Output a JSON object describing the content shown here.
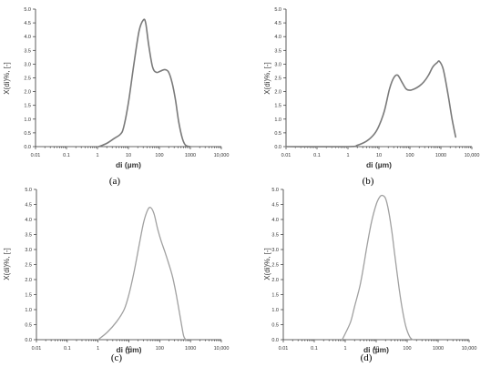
{
  "chart_data": [
    {
      "type": "line",
      "caption": "(a)",
      "xlabel": "di (µm)",
      "ylabel": "X(di)%, [-]",
      "xscale": "log",
      "xlim": [
        0.01,
        10000
      ],
      "ylim": [
        0,
        5
      ],
      "xticks": [
        "0.01",
        "0.1",
        "1",
        "10",
        "100",
        "1000",
        "10,000"
      ],
      "yticks": [
        "0.0",
        "0.5",
        "1.0",
        "1.5",
        "2.0",
        "2.5",
        "3.0",
        "3.5",
        "4.0",
        "4.5",
        "5.0"
      ],
      "grid": false,
      "color": "#7a7a7a",
      "series": [
        {
          "x": [
            1.1,
            2,
            3.5,
            5.5,
            7,
            10,
            15,
            22,
            30,
            36,
            45,
            60,
            80,
            110,
            150,
            200,
            260,
            330,
            420,
            550,
            700,
            1000
          ],
          "y": [
            0,
            0.12,
            0.3,
            0.45,
            0.7,
            1.6,
            3.0,
            4.2,
            4.6,
            4.5,
            3.7,
            2.9,
            2.7,
            2.75,
            2.8,
            2.7,
            2.3,
            1.7,
            0.9,
            0.3,
            0.05,
            0
          ]
        }
      ]
    },
    {
      "type": "line",
      "caption": "(b)",
      "xlabel": "di (µm)",
      "ylabel": "X(di)%, [-]",
      "xscale": "log",
      "xlim": [
        0.01,
        10000
      ],
      "ylim": [
        0,
        5
      ],
      "xticks": [
        "0.01",
        "0.1",
        "1",
        "10",
        "100",
        "1000",
        "10,000"
      ],
      "yticks": [
        "0.0",
        "0.5",
        "1.0",
        "1.5",
        "2.0",
        "2.5",
        "3.0",
        "3.5",
        "4.0",
        "4.5",
        "5.0"
      ],
      "grid": false,
      "color": "#7a7a7a",
      "series": [
        {
          "x": [
            0.01,
            1,
            2,
            4,
            7,
            10,
            15,
            22,
            30,
            40,
            55,
            75,
            100,
            140,
            200,
            280,
            400,
            550,
            750,
            900,
            1200,
            1700,
            2300,
            3000
          ],
          "y": [
            0,
            0,
            0.05,
            0.2,
            0.45,
            0.75,
            1.3,
            2.1,
            2.5,
            2.6,
            2.35,
            2.1,
            2.05,
            2.1,
            2.2,
            2.35,
            2.6,
            2.9,
            3.05,
            3.1,
            2.8,
            1.9,
            1.0,
            0.35
          ]
        }
      ]
    },
    {
      "type": "line",
      "caption": "(c)",
      "xlabel": "di (µm)",
      "ylabel": "X(di)%, [-]",
      "xscale": "log",
      "xlim": [
        0.01,
        10000
      ],
      "ylim": [
        0,
        5
      ],
      "xticks": [
        "0.01",
        "0.1",
        "1",
        "10",
        "100",
        "1000",
        "10,000"
      ],
      "yticks": [
        "0.0",
        "0.5",
        "1.0",
        "1.5",
        "2.0",
        "2.5",
        "3.0",
        "3.5",
        "4.0",
        "4.5",
        "5.0"
      ],
      "grid": false,
      "color": "#a0a0a0",
      "series": [
        {
          "x": [
            1,
            2,
            4,
            7,
            10,
            15,
            22,
            30,
            40,
            50,
            65,
            85,
            110,
            150,
            200,
            260,
            330,
            420,
            520,
            600,
            700
          ],
          "y": [
            0,
            0.25,
            0.6,
            1.0,
            1.5,
            2.3,
            3.2,
            3.9,
            4.3,
            4.4,
            4.2,
            3.7,
            3.3,
            2.9,
            2.5,
            2.1,
            1.6,
            1.0,
            0.45,
            0.12,
            0
          ]
        }
      ]
    },
    {
      "type": "line",
      "caption": "(d)",
      "xlabel": "di (µm)",
      "ylabel": "X(di)%, [-]",
      "xscale": "log",
      "xlim": [
        0.01,
        10000
      ],
      "ylim": [
        0,
        5
      ],
      "xticks": [
        "0.01",
        "0.1",
        "1",
        "10",
        "100",
        "1000",
        "10,000"
      ],
      "yticks": [
        "0.0",
        "0.5",
        "1.0",
        "1.5",
        "2.0",
        "2.5",
        "3.0",
        "3.5",
        "4.0",
        "4.5",
        "5.0"
      ],
      "grid": false,
      "color": "#a0a0a0",
      "series": [
        {
          "x": [
            0.8,
            1.0,
            1.5,
            2,
            3,
            4,
            5,
            7,
            10,
            13,
            16,
            20,
            25,
            32,
            40,
            55,
            70,
            90,
            120,
            150
          ],
          "y": [
            0,
            0.2,
            0.6,
            1.1,
            1.8,
            2.5,
            3.1,
            3.9,
            4.5,
            4.75,
            4.8,
            4.7,
            4.3,
            3.6,
            2.8,
            1.7,
            1.0,
            0.45,
            0.1,
            0
          ]
        }
      ]
    }
  ]
}
